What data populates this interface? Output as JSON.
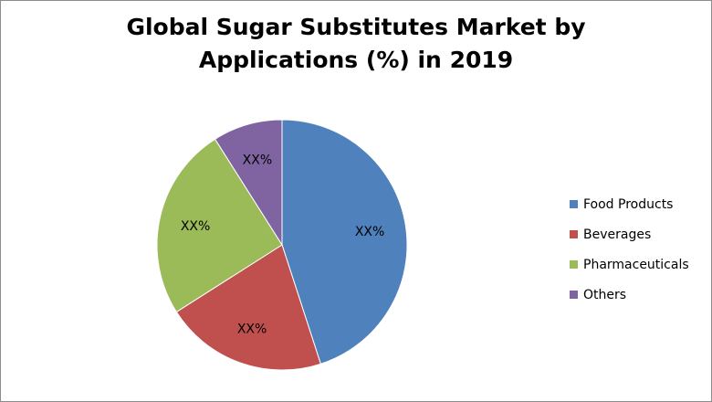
{
  "chart_data": {
    "type": "pie",
    "title_lines": [
      "Global Sugar Substitutes Market by",
      "Applications (%) in 2019"
    ],
    "legend_position": "right",
    "slices": [
      {
        "label": "Food Products",
        "value": 45,
        "data_label": "XX%",
        "color": "#4f81bd"
      },
      {
        "label": "Beverages",
        "value": 21,
        "data_label": "XX%",
        "color": "#c0504d"
      },
      {
        "label": "Pharmaceuticals",
        "value": 25,
        "data_label": "XX%",
        "color": "#9bbb59"
      },
      {
        "label": "Others",
        "value": 9,
        "data_label": "XX%",
        "color": "#8064a2"
      }
    ]
  }
}
